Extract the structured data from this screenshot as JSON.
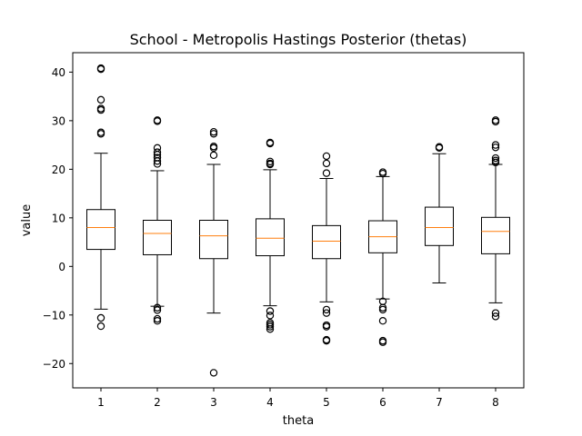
{
  "chart_data": {
    "type": "boxplot",
    "title": "School - Metropolis Hastings Posterior (thetas)",
    "xlabel": "theta",
    "ylabel": "value",
    "categories": [
      "1",
      "2",
      "3",
      "4",
      "5",
      "6",
      "7",
      "8"
    ],
    "ylim": [
      -25,
      44
    ],
    "yticks": [
      -20,
      -10,
      0,
      10,
      20,
      30,
      40
    ],
    "yticklabels": [
      "−20",
      "−10",
      "0",
      "10",
      "20",
      "30",
      "40"
    ],
    "grid": false,
    "colors": {
      "box": "#000000",
      "median": "#ff7f0e",
      "background": "#ffffff"
    },
    "boxes": [
      {
        "label": "1",
        "whisker_low": -8.8,
        "q1": 3.5,
        "median": 8.0,
        "q3": 11.7,
        "whisker_high": 23.3,
        "outliers": [
          40.8,
          40.6,
          34.3,
          32.5,
          32.2,
          27.6,
          27.3,
          -10.6,
          -12.3
        ]
      },
      {
        "label": "2",
        "whisker_low": -8.2,
        "q1": 2.4,
        "median": 6.8,
        "q3": 9.5,
        "whisker_high": 19.7,
        "outliers": [
          30.1,
          29.9,
          24.4,
          23.5,
          23.0,
          22.4,
          21.7,
          21.1,
          -8.5,
          -9.0,
          -10.8,
          -11.2
        ]
      },
      {
        "label": "3",
        "whisker_low": -9.6,
        "q1": 1.6,
        "median": 6.3,
        "q3": 9.5,
        "whisker_high": 21.0,
        "outliers": [
          27.7,
          27.3,
          24.7,
          24.4,
          22.9,
          -21.9
        ]
      },
      {
        "label": "4",
        "whisker_low": -8.1,
        "q1": 2.2,
        "median": 5.8,
        "q3": 9.8,
        "whisker_high": 19.9,
        "outliers": [
          25.5,
          25.3,
          21.6,
          21.2,
          21.0,
          -9.2,
          -10.1,
          -11.6,
          -12.0,
          -12.4,
          -12.9
        ]
      },
      {
        "label": "5",
        "whisker_low": -7.3,
        "q1": 1.6,
        "median": 5.2,
        "q3": 8.4,
        "whisker_high": 18.1,
        "outliers": [
          22.7,
          21.2,
          19.2,
          -8.9,
          -9.6,
          -12.1,
          -12.4,
          -15.1,
          -15.3
        ]
      },
      {
        "label": "6",
        "whisker_low": -6.7,
        "q1": 2.8,
        "median": 6.1,
        "q3": 9.4,
        "whisker_high": 18.5,
        "outliers": [
          19.4,
          19.1,
          -7.2,
          -8.5,
          -8.9,
          -11.2,
          -15.3,
          -15.6
        ]
      },
      {
        "label": "7",
        "whisker_low": -3.4,
        "q1": 4.3,
        "median": 8.0,
        "q3": 12.2,
        "whisker_high": 23.2,
        "outliers": [
          24.6,
          24.4
        ]
      },
      {
        "label": "8",
        "whisker_low": -7.5,
        "q1": 2.6,
        "median": 7.2,
        "q3": 10.1,
        "whisker_high": 21.0,
        "outliers": [
          30.1,
          29.8,
          25.0,
          24.5,
          22.3,
          21.8,
          21.4,
          -9.6,
          -10.3
        ]
      }
    ]
  }
}
